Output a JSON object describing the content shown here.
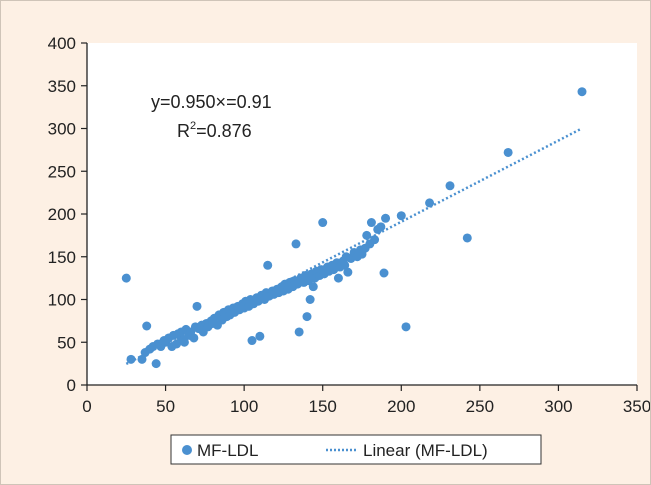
{
  "chart_data": {
    "type": "scatter",
    "title": "",
    "xlabel": "",
    "ylabel": "",
    "xlim": [
      0,
      350
    ],
    "ylim": [
      0,
      400
    ],
    "x_ticks": [
      0,
      50,
      100,
      150,
      200,
      250,
      300,
      350
    ],
    "y_ticks": [
      0,
      50,
      100,
      150,
      200,
      250,
      300,
      350,
      400
    ],
    "grid": false,
    "legend_position": "bottom",
    "colors": {
      "points": "#4a90d0",
      "trendline": "#4a90d0"
    },
    "series": [
      {
        "name": "MF-LDL",
        "points": [
          [
            25,
            125
          ],
          [
            28,
            30
          ],
          [
            35,
            30
          ],
          [
            38,
            69
          ],
          [
            37,
            38
          ],
          [
            40,
            42
          ],
          [
            42,
            45
          ],
          [
            44,
            25
          ],
          [
            45,
            48
          ],
          [
            47,
            45
          ],
          [
            49,
            52
          ],
          [
            50,
            50
          ],
          [
            52,
            55
          ],
          [
            54,
            45
          ],
          [
            55,
            58
          ],
          [
            57,
            48
          ],
          [
            58,
            60
          ],
          [
            60,
            55
          ],
          [
            60,
            62
          ],
          [
            62,
            50
          ],
          [
            63,
            65
          ],
          [
            65,
            58
          ],
          [
            66,
            62
          ],
          [
            68,
            55
          ],
          [
            69,
            68
          ],
          [
            70,
            92
          ],
          [
            71,
            66
          ],
          [
            73,
            70
          ],
          [
            74,
            62
          ],
          [
            76,
            72
          ],
          [
            77,
            68
          ],
          [
            79,
            75
          ],
          [
            80,
            72
          ],
          [
            81,
            78
          ],
          [
            83,
            70
          ],
          [
            84,
            82
          ],
          [
            86,
            76
          ],
          [
            87,
            85
          ],
          [
            89,
            80
          ],
          [
            90,
            88
          ],
          [
            91,
            82
          ],
          [
            93,
            90
          ],
          [
            94,
            85
          ],
          [
            96,
            92
          ],
          [
            97,
            88
          ],
          [
            99,
            95
          ],
          [
            100,
            90
          ],
          [
            101,
            98
          ],
          [
            103,
            92
          ],
          [
            104,
            100
          ],
          [
            105,
            52
          ],
          [
            106,
            95
          ],
          [
            108,
            102
          ],
          [
            109,
            98
          ],
          [
            110,
            57
          ],
          [
            111,
            105
          ],
          [
            113,
            100
          ],
          [
            114,
            108
          ],
          [
            115,
            140
          ],
          [
            116,
            104
          ],
          [
            118,
            110
          ],
          [
            119,
            106
          ],
          [
            121,
            112
          ],
          [
            122,
            108
          ],
          [
            124,
            115
          ],
          [
            125,
            110
          ],
          [
            126,
            118
          ],
          [
            128,
            112
          ],
          [
            129,
            120
          ],
          [
            131,
            115
          ],
          [
            132,
            122
          ],
          [
            133,
            165
          ],
          [
            134,
            118
          ],
          [
            135,
            62
          ],
          [
            136,
            125
          ],
          [
            138,
            120
          ],
          [
            139,
            128
          ],
          [
            140,
            80
          ],
          [
            141,
            122
          ],
          [
            142,
            100
          ],
          [
            143,
            130
          ],
          [
            144,
            115
          ],
          [
            145,
            125
          ],
          [
            146,
            133
          ],
          [
            148,
            128
          ],
          [
            149,
            135
          ],
          [
            150,
            190
          ],
          [
            151,
            130
          ],
          [
            153,
            138
          ],
          [
            154,
            133
          ],
          [
            156,
            140
          ],
          [
            157,
            135
          ],
          [
            159,
            143
          ],
          [
            160,
            125
          ],
          [
            161,
            138
          ],
          [
            163,
            145
          ],
          [
            164,
            140
          ],
          [
            165,
            150
          ],
          [
            166,
            132
          ],
          [
            168,
            148
          ],
          [
            170,
            155
          ],
          [
            172,
            150
          ],
          [
            174,
            158
          ],
          [
            175,
            153
          ],
          [
            177,
            160
          ],
          [
            178,
            175
          ],
          [
            180,
            165
          ],
          [
            181,
            190
          ],
          [
            183,
            170
          ],
          [
            185,
            182
          ],
          [
            187,
            185
          ],
          [
            189,
            131
          ],
          [
            190,
            195
          ],
          [
            200,
            198
          ],
          [
            203,
            68
          ],
          [
            218,
            213
          ],
          [
            231,
            233
          ],
          [
            242,
            172
          ],
          [
            268,
            272
          ],
          [
            315,
            343
          ]
        ]
      }
    ],
    "trendline": {
      "name": "Linear (MF-LDL)",
      "style": "dotted",
      "slope": 0.95,
      "intercept": 0.91,
      "x_range": [
        25,
        315
      ]
    },
    "annotations": {
      "equation": "y=0.950×=0.91",
      "r2_label": "R",
      "r2_superscript": "2",
      "r2_value": "=0.876"
    },
    "legend": {
      "series_label": "MF-LDL",
      "trend_label": "Linear (MF-LDL)"
    }
  }
}
